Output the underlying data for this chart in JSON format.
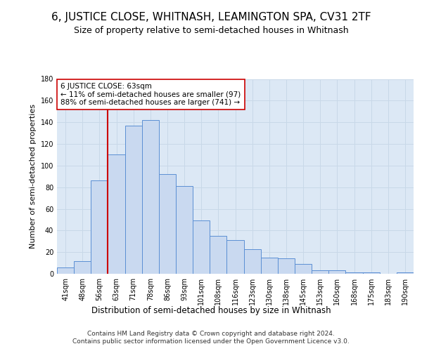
{
  "title1": "6, JUSTICE CLOSE, WHITNASH, LEAMINGTON SPA, CV31 2TF",
  "title2": "Size of property relative to semi-detached houses in Whitnash",
  "xlabel": "Distribution of semi-detached houses by size in Whitnash",
  "ylabel": "Number of semi-detached properties",
  "categories": [
    "41sqm",
    "48sqm",
    "56sqm",
    "63sqm",
    "71sqm",
    "78sqm",
    "86sqm",
    "93sqm",
    "101sqm",
    "108sqm",
    "116sqm",
    "123sqm",
    "130sqm",
    "138sqm",
    "145sqm",
    "153sqm",
    "160sqm",
    "168sqm",
    "175sqm",
    "183sqm",
    "190sqm"
  ],
  "values": [
    6,
    12,
    86,
    110,
    137,
    142,
    92,
    81,
    49,
    35,
    31,
    23,
    15,
    14,
    9,
    3,
    3,
    1,
    1,
    0,
    1
  ],
  "bar_color": "#c9d9f0",
  "bar_edge_color": "#5b8fd4",
  "vline_color": "#cc0000",
  "annotation_text": "6 JUSTICE CLOSE: 63sqm\n← 11% of semi-detached houses are smaller (97)\n88% of semi-detached houses are larger (741) →",
  "annotation_box_color": "#ffffff",
  "annotation_box_edge": "#cc0000",
  "grid_color": "#c8d8e8",
  "background_color": "#dce8f5",
  "footer": "Contains HM Land Registry data © Crown copyright and database right 2024.\nContains public sector information licensed under the Open Government Licence v3.0.",
  "ylim": [
    0,
    180
  ],
  "yticks": [
    0,
    20,
    40,
    60,
    80,
    100,
    120,
    140,
    160,
    180
  ],
  "title1_fontsize": 11,
  "title2_fontsize": 9,
  "annot_fontsize": 7.5,
  "tick_fontsize": 7,
  "ylabel_fontsize": 8,
  "xlabel_fontsize": 8.5,
  "footer_fontsize": 6.5
}
